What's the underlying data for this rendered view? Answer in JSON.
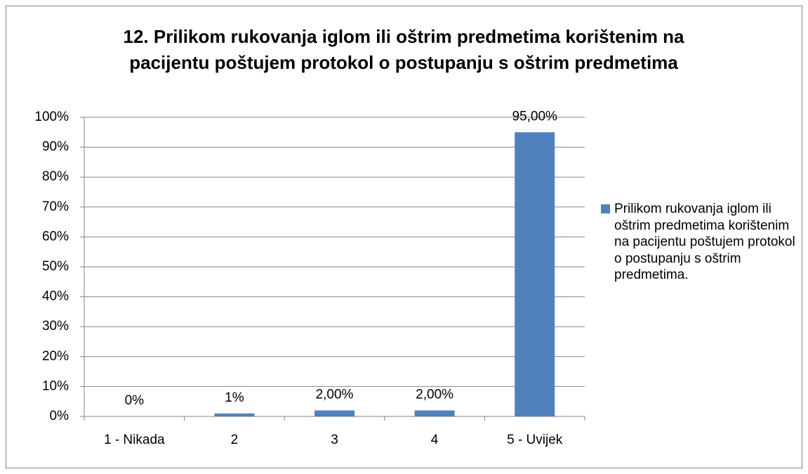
{
  "chart_data": {
    "type": "bar",
    "title": "12. Prilikom rukovanja iglom ili oštrim predmetima korištenim na pacijentu poštujem protokol o postupanju s oštrim predmetima",
    "categories": [
      "1 - Nikada",
      "2",
      "3",
      "4",
      "5 - Uvijek"
    ],
    "series": [
      {
        "name": "Prilikom rukovanja iglom ili oštrim predmetima korištenim na pacijentu poštujem protokol o postupanju s oštrim predmetima.",
        "color": "#4f81bd",
        "values": [
          0,
          1,
          2,
          2,
          95
        ],
        "value_labels": [
          "0%",
          "1%",
          "2,00%",
          "2,00%",
          "95,00%"
        ]
      }
    ],
    "ylim": [
      0,
      100
    ],
    "yticks": [
      {
        "value": 0,
        "label": "0%"
      },
      {
        "value": 10,
        "label": "10%"
      },
      {
        "value": 20,
        "label": "20%"
      },
      {
        "value": 30,
        "label": "30%"
      },
      {
        "value": 40,
        "label": "40%"
      },
      {
        "value": 50,
        "label": "50%"
      },
      {
        "value": 60,
        "label": "60%"
      },
      {
        "value": 70,
        "label": "70%"
      },
      {
        "value": 80,
        "label": "80%"
      },
      {
        "value": 90,
        "label": "90%"
      },
      {
        "value": 100,
        "label": "100%"
      }
    ],
    "grid": true,
    "legend": "right"
  }
}
